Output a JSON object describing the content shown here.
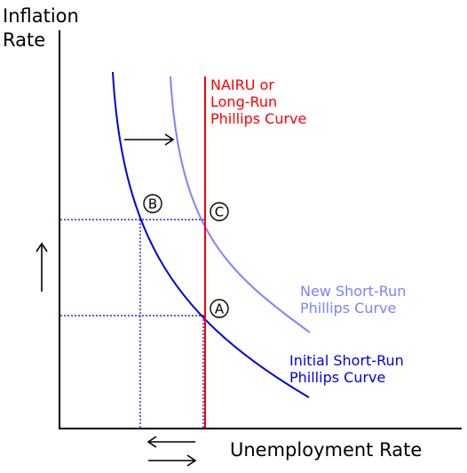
{
  "axes": {
    "y_label_line1": "Inflation",
    "y_label_line2": "Rate",
    "x_label": "Unemployment Rate"
  },
  "curves": {
    "nairu": {
      "line1": "NAIRU or",
      "line2": "Long-Run",
      "line3": "Phillips Curve",
      "color": "#ff0000"
    },
    "new_short_run": {
      "line1": "New Short-Run",
      "line2": "Phillips Curve",
      "color": "#8080ff"
    },
    "initial_short_run": {
      "line1": "Initial Short-Run",
      "line2": "Phillips Curve",
      "color": "#0000dd"
    }
  },
  "points": {
    "a": "A",
    "b": "B",
    "c": "C"
  },
  "colors": {
    "axis": "#000000",
    "guide": "#0000cc"
  }
}
